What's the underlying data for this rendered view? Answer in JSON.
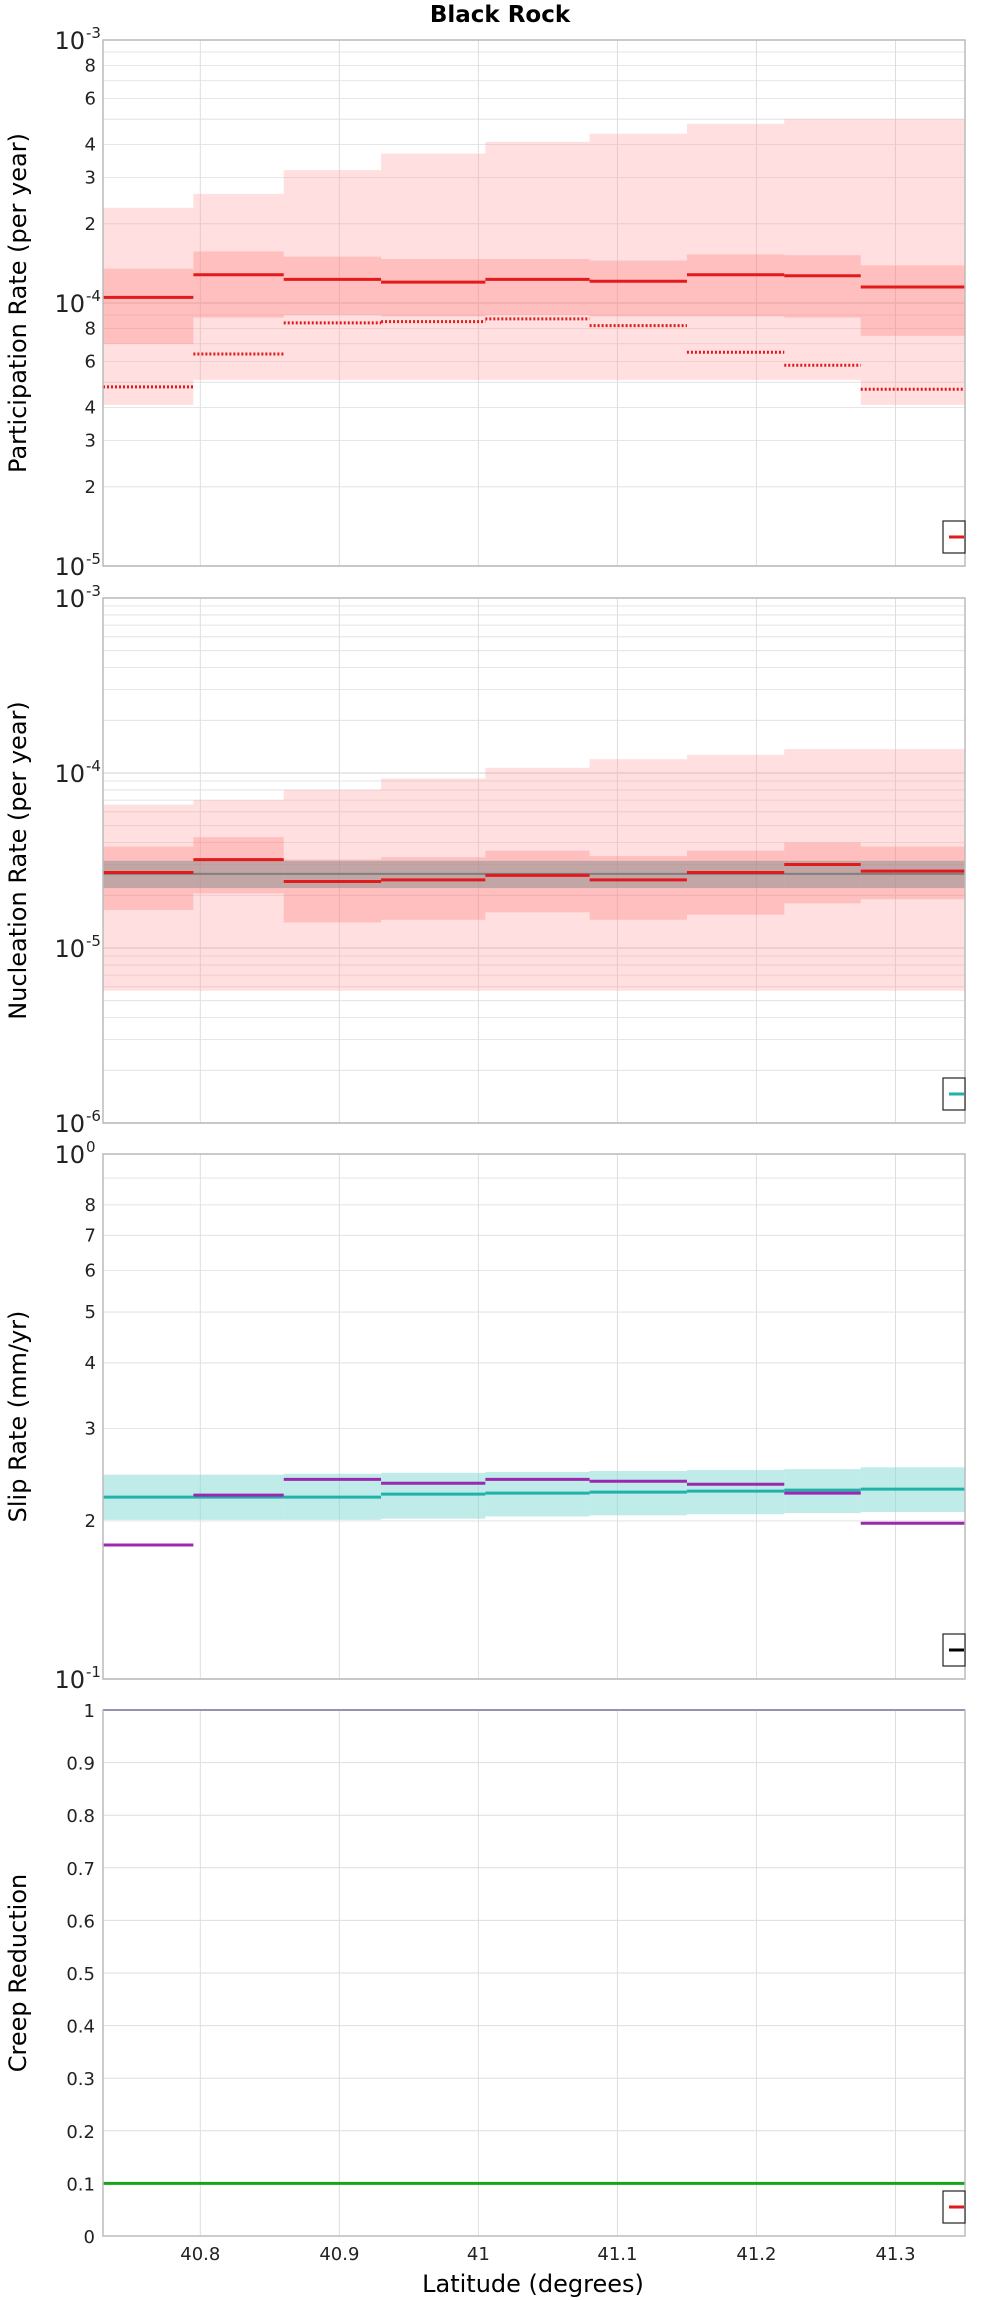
{
  "chart": {
    "title": "Black Rock",
    "xlabel": "Latitude (degrees)"
  },
  "colors": {
    "participation": "#e31a1c",
    "participation_band": "#ffc8c8",
    "nucleation_mean": "#7f7f7f",
    "slip_target": "#20b2aa",
    "slip_model": "#9c27b0",
    "creep_top": "#1a237e",
    "creep_bottom": "#1aa31a",
    "grid": "#dedede",
    "axis": "#bbbbbb"
  },
  "chart_data": [
    {
      "type": "line",
      "title": "Black Rock",
      "ylabel": "Participation Rate (per year)",
      "yscale": "log",
      "ylim": [
        1e-05,
        0.001
      ],
      "xlim": [
        40.73,
        41.35
      ],
      "x_bins": [
        40.73,
        40.795,
        40.86,
        40.93,
        41.005,
        41.08,
        41.15,
        41.22,
        41.275,
        41.35
      ],
      "series": [
        {
          "values": [
            0.000105,
            0.000128,
            0.000123,
            0.00012,
            0.000123,
            0.000121,
            0.000128,
            0.000127,
            0.000115
          ],
          "style": "solid"
        },
        {
          "values": [
            4.8e-05,
            6.4e-05,
            8.4e-05,
            8.5e-05,
            8.7e-05,
            8.2e-05,
            6.5e-05,
            5.8e-05,
            4.7e-05
          ],
          "style": "dotted"
        }
      ],
      "band_outer_low": [
        4.1e-05,
        5.1e-05,
        5.1e-05,
        5.1e-05,
        5.1e-05,
        5.1e-05,
        5.1e-05,
        5.1e-05,
        4.1e-05
      ],
      "band_outer_high": [
        0.00023,
        0.00026,
        0.00032,
        0.00037,
        0.00041,
        0.00044,
        0.00048,
        0.0005,
        0.0005
      ],
      "band_inner_low": [
        7e-05,
        8.8e-05,
        9e-05,
        8.9e-05,
        9e-05,
        8.9e-05,
        8.9e-05,
        8.8e-05,
        7.5e-05
      ],
      "band_inner_high": [
        0.000135,
        0.000157,
        0.00015,
        0.000147,
        0.000147,
        0.000145,
        0.000153,
        0.000152,
        0.000139
      ],
      "ytick_minor": [
        "2",
        "3",
        "4",
        "6",
        "8"
      ]
    },
    {
      "type": "line",
      "ylabel": "Nucleation Rate (per year)",
      "yscale": "log",
      "ylim": [
        1e-06,
        0.001
      ],
      "xlim": [
        40.73,
        41.35
      ],
      "x_bins": [
        40.73,
        40.795,
        40.86,
        40.93,
        41.005,
        41.08,
        41.15,
        41.22,
        41.275,
        41.35
      ],
      "series": [
        {
          "values": [
            2.7e-05,
            3.2e-05,
            2.4e-05,
            2.45e-05,
            2.6e-05,
            2.45e-05,
            2.7e-05,
            3e-05,
            2.75e-05
          ],
          "style": "red"
        },
        {
          "values": [
            2.65e-05,
            2.65e-05,
            2.65e-05,
            2.65e-05,
            2.65e-05,
            2.65e-05,
            2.65e-05,
            2.65e-05,
            2.65e-05
          ],
          "style": "gray"
        }
      ],
      "band_outer_low": [
        5.7e-06,
        5.7e-06,
        5.7e-06,
        5.7e-06,
        5.7e-06,
        5.7e-06,
        5.7e-06,
        5.7e-06,
        5.7e-06
      ],
      "band_outer_high": [
        6.6e-05,
        7e-05,
        8e-05,
        9.3e-05,
        0.000107,
        0.00012,
        0.000127,
        0.000137,
        0.000137
      ],
      "band_inner_low": [
        1.65e-05,
        2.05e-05,
        1.4e-05,
        1.45e-05,
        1.6e-05,
        1.45e-05,
        1.55e-05,
        1.8e-05,
        1.9e-05
      ],
      "band_inner_high": [
        3.8e-05,
        4.3e-05,
        3.2e-05,
        3.3e-05,
        3.6e-05,
        3.35e-05,
        3.6e-05,
        4e-05,
        3.8e-05
      ],
      "gray_band_low": [
        2.2e-05,
        2.2e-05,
        2.2e-05,
        2.2e-05,
        2.2e-05,
        2.2e-05,
        2.2e-05,
        2.2e-05,
        2.2e-05
      ],
      "gray_band_high": [
        3.15e-05,
        3.15e-05,
        3.15e-05,
        3.15e-05,
        3.15e-05,
        3.15e-05,
        3.15e-05,
        3.15e-05,
        3.15e-05
      ]
    },
    {
      "type": "line",
      "ylabel": "Slip Rate (mm/yr)",
      "yscale": "log",
      "ylim": [
        0.1,
        1
      ],
      "xlim": [
        40.73,
        41.35
      ],
      "x_bins": [
        40.73,
        40.795,
        40.86,
        40.93,
        41.005,
        41.08,
        41.15,
        41.22,
        41.275,
        41.35
      ],
      "series": [
        {
          "values": [
            0.222,
            0.222,
            0.222,
            0.225,
            0.226,
            0.227,
            0.228,
            0.229,
            0.23
          ],
          "style": "target"
        },
        {
          "values": [
            0.18,
            0.224,
            0.24,
            0.236,
            0.24,
            0.238,
            0.235,
            0.226,
            0.198
          ],
          "style": "model"
        }
      ],
      "band_low": [
        0.201,
        0.201,
        0.201,
        0.202,
        0.204,
        0.205,
        0.206,
        0.207,
        0.208
      ],
      "band_high": [
        0.245,
        0.245,
        0.246,
        0.247,
        0.248,
        0.249,
        0.25,
        0.251,
        0.253
      ],
      "ytick_minor": [
        "2",
        "3",
        "4",
        "5",
        "6",
        "7",
        "8"
      ]
    },
    {
      "type": "line",
      "ylabel": "Creep Reduction",
      "yscale": "linear",
      "ylim": [
        0,
        1
      ],
      "xlim": [
        40.73,
        41.35
      ],
      "xticks": [
        "40.8",
        "40.9",
        "41",
        "41.1",
        "41.2",
        "41.3"
      ],
      "series": [
        {
          "values": [
            1.0
          ],
          "style": "top"
        },
        {
          "values": [
            0.1
          ],
          "style": "bottom"
        }
      ],
      "yticks": [
        "0",
        "0.1",
        "0.2",
        "0.3",
        "0.4",
        "0.5",
        "0.6",
        "0.7",
        "0.8",
        "0.9",
        "1"
      ]
    }
  ]
}
